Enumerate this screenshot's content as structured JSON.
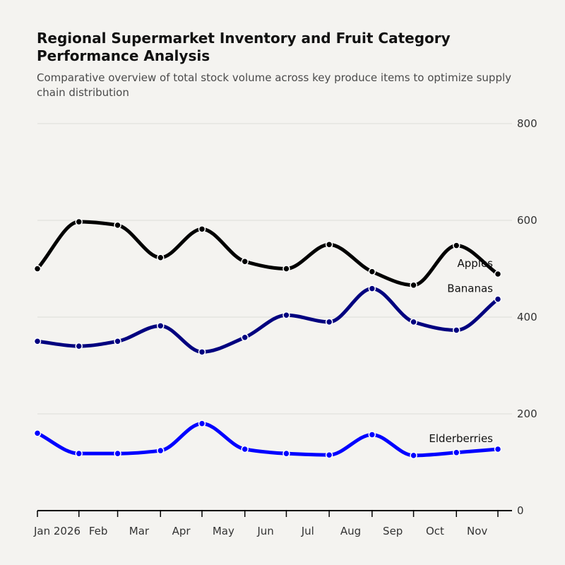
{
  "chart_data": {
    "type": "line",
    "title": "Regional Supermarket Inventory and Fruit Category Performance Analysis",
    "subtitle": "Comparative overview of total stock volume across key produce items to optimize supply chain distribution",
    "xlabel": "",
    "ylabel": "",
    "x": [
      "2026-01-01",
      "2026-01-31",
      "2026-02-28",
      "2026-03-31",
      "2026-04-30",
      "2026-05-31",
      "2026-06-30",
      "2026-07-31",
      "2026-08-31",
      "2026-09-30",
      "2026-10-31",
      "2026-11-30"
    ],
    "x_tick_labels": [
      "Jan 2026",
      "Feb",
      "Mar",
      "Apr",
      "May",
      "Jun",
      "Jul",
      "Aug",
      "Sep",
      "Oct",
      "Nov"
    ],
    "ylim": [
      0,
      800
    ],
    "y_ticks": [
      0,
      200,
      400,
      600,
      800
    ],
    "y_axis_position": "right",
    "grid": "horizontal",
    "series": [
      {
        "name": "Apples",
        "color": "#000000",
        "values": [
          500,
          597,
          590,
          523,
          582,
          515,
          500,
          550,
          494,
          466,
          548,
          489
        ]
      },
      {
        "name": "Bananas",
        "color": "#00007f",
        "values": [
          350,
          340,
          350,
          382,
          328,
          358,
          404,
          390,
          459,
          390,
          373,
          437
        ]
      },
      {
        "name": "Elderberries",
        "color": "#0000ff",
        "values": [
          160,
          118,
          118,
          124,
          180,
          127,
          118,
          115,
          157,
          114,
          120,
          127
        ]
      }
    ]
  }
}
